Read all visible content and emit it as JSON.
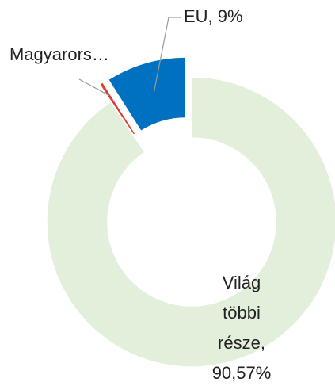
{
  "chart_data": {
    "type": "donut",
    "labels": [
      "Világ többi része, 90,57%",
      "Magyarors…",
      "EU, 9%"
    ],
    "values": [
      90.57,
      0.43,
      9
    ],
    "colors": [
      "#e2efda",
      "#e03c31",
      "#0070c0"
    ],
    "exploded": [
      false,
      true,
      true
    ]
  }
}
